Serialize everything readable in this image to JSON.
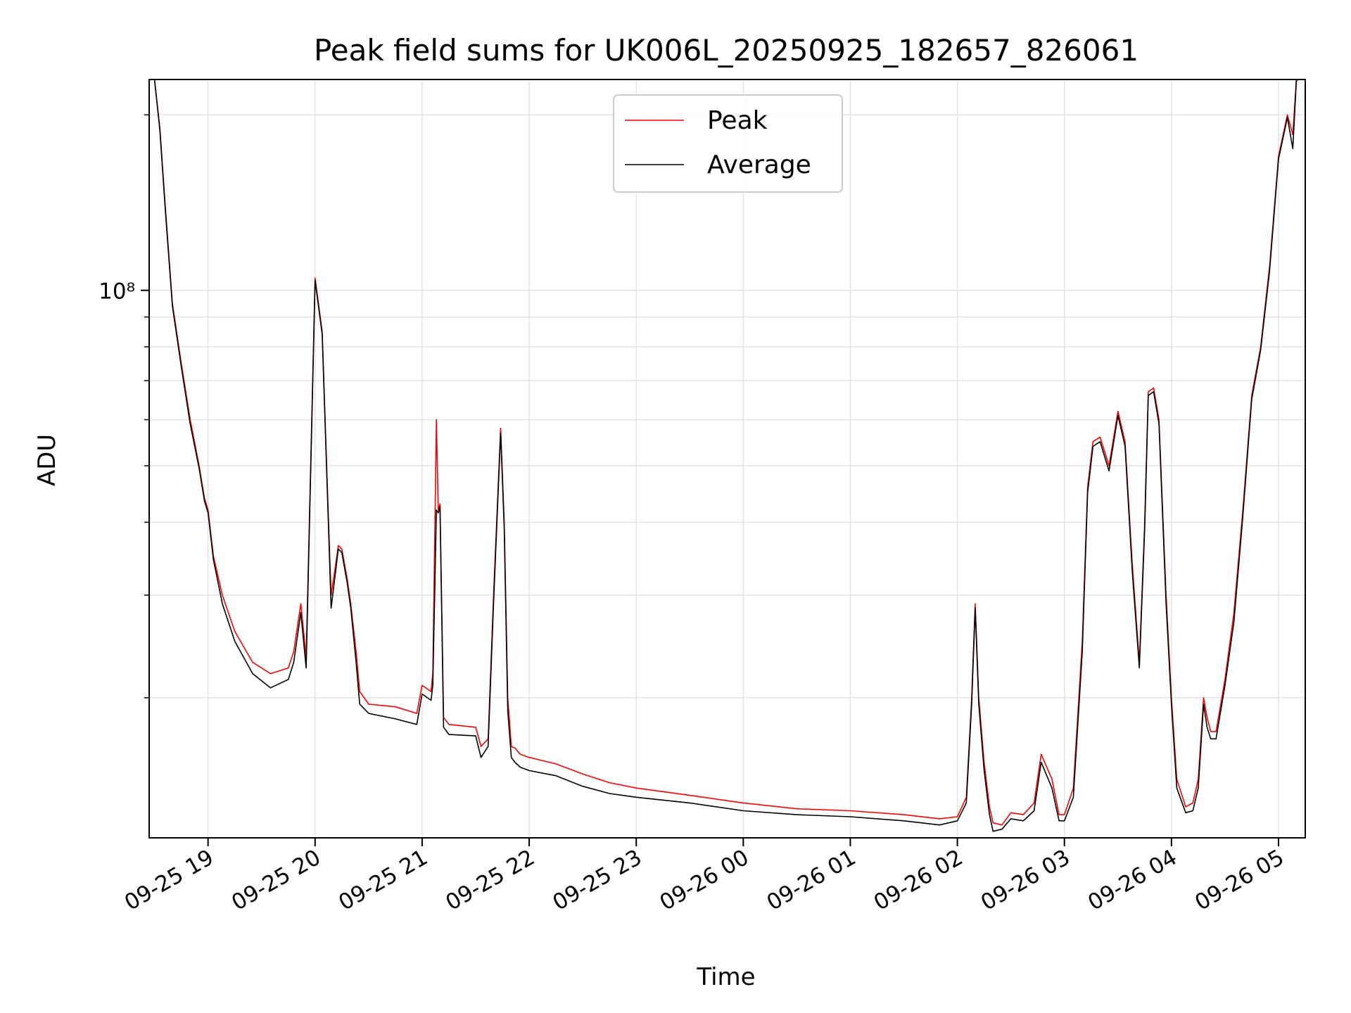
{
  "chart_data": {
    "type": "line",
    "title": "Peak field sums for UK006L_20250925_182657_826061",
    "xlabel": "Time",
    "ylabel": "ADU",
    "x_type": "datetime",
    "xlim": [
      "2025-09-25 18:27",
      "2025-09-26 05:15"
    ],
    "ylim": [
      11500000,
      230000000
    ],
    "y_scale": "log",
    "grid": true,
    "legend": "upper center",
    "x_ticks": [
      {
        "t": "2025-09-25 19:00",
        "label": "09-25 19"
      },
      {
        "t": "2025-09-25 20:00",
        "label": "09-25 20"
      },
      {
        "t": "2025-09-25 21:00",
        "label": "09-25 21"
      },
      {
        "t": "2025-09-25 22:00",
        "label": "09-25 22"
      },
      {
        "t": "2025-09-25 23:00",
        "label": "09-25 23"
      },
      {
        "t": "2025-09-26 00:00",
        "label": "09-26 00"
      },
      {
        "t": "2025-09-26 01:00",
        "label": "09-26 01"
      },
      {
        "t": "2025-09-26 02:00",
        "label": "09-26 02"
      },
      {
        "t": "2025-09-26 03:00",
        "label": "09-26 03"
      },
      {
        "t": "2025-09-26 04:00",
        "label": "09-26 04"
      },
      {
        "t": "2025-09-26 05:00",
        "label": "09-26 05"
      }
    ],
    "y_major_ticks": [
      {
        "value": 100000000,
        "label": "10⁸"
      }
    ],
    "y_minor_ticks": [
      20000000,
      30000000,
      40000000,
      50000000,
      60000000,
      70000000,
      80000000,
      90000000,
      200000000
    ],
    "series": [
      {
        "name": "Peak",
        "color": "#ff0000",
        "x": [
          "2025-09-25 18:30",
          "2025-09-25 18:33",
          "2025-09-25 18:36",
          "2025-09-25 18:40",
          "2025-09-25 18:45",
          "2025-09-25 18:50",
          "2025-09-25 18:55",
          "2025-09-25 18:58",
          "2025-09-25 19:00",
          "2025-09-25 19:03",
          "2025-09-25 19:08",
          "2025-09-25 19:15",
          "2025-09-25 19:25",
          "2025-09-25 19:35",
          "2025-09-25 19:45",
          "2025-09-25 19:48",
          "2025-09-25 19:52",
          "2025-09-25 19:55",
          "2025-09-25 20:00",
          "2025-09-25 20:04",
          "2025-09-25 20:07",
          "2025-09-25 20:09",
          "2025-09-25 20:11",
          "2025-09-25 20:13",
          "2025-09-25 20:15",
          "2025-09-25 20:18",
          "2025-09-25 20:20",
          "2025-09-25 20:23",
          "2025-09-25 20:25",
          "2025-09-25 20:30",
          "2025-09-25 20:45",
          "2025-09-25 20:57",
          "2025-09-25 21:00",
          "2025-09-25 21:05",
          "2025-09-25 21:06",
          "2025-09-25 21:08",
          "2025-09-25 21:09",
          "2025-09-25 21:10",
          "2025-09-25 21:12",
          "2025-09-25 21:15",
          "2025-09-25 21:30",
          "2025-09-25 21:33",
          "2025-09-25 21:37",
          "2025-09-25 21:40",
          "2025-09-25 21:44",
          "2025-09-25 21:46",
          "2025-09-25 21:48",
          "2025-09-25 21:50",
          "2025-09-25 21:52",
          "2025-09-25 21:55",
          "2025-09-25 22:00",
          "2025-09-25 22:15",
          "2025-09-25 22:30",
          "2025-09-25 22:45",
          "2025-09-25 23:00",
          "2025-09-25 23:30",
          "2025-09-26 00:00",
          "2025-09-26 00:30",
          "2025-09-26 01:00",
          "2025-09-26 01:30",
          "2025-09-26 01:50",
          "2025-09-26 02:00",
          "2025-09-26 02:05",
          "2025-09-26 02:08",
          "2025-09-26 02:10",
          "2025-09-26 02:12",
          "2025-09-26 02:15",
          "2025-09-26 02:18",
          "2025-09-26 02:20",
          "2025-09-26 02:25",
          "2025-09-26 02:30",
          "2025-09-26 02:37",
          "2025-09-26 02:43",
          "2025-09-26 02:47",
          "2025-09-26 02:53",
          "2025-09-26 02:57",
          "2025-09-26 03:00",
          "2025-09-26 03:05",
          "2025-09-26 03:10",
          "2025-09-26 03:13",
          "2025-09-26 03:16",
          "2025-09-26 03:20",
          "2025-09-26 03:25",
          "2025-09-26 03:30",
          "2025-09-26 03:34",
          "2025-09-26 03:38",
          "2025-09-26 03:42",
          "2025-09-26 03:45",
          "2025-09-26 03:47",
          "2025-09-26 03:50",
          "2025-09-26 03:53",
          "2025-09-26 03:57",
          "2025-09-26 04:00",
          "2025-09-26 04:03",
          "2025-09-26 04:08",
          "2025-09-26 04:12",
          "2025-09-26 04:15",
          "2025-09-26 04:18",
          "2025-09-26 04:20",
          "2025-09-26 04:22",
          "2025-09-26 04:25",
          "2025-09-26 04:30",
          "2025-09-26 04:35",
          "2025-09-26 04:40",
          "2025-09-26 04:45",
          "2025-09-26 04:50",
          "2025-09-26 04:55",
          "2025-09-26 05:00",
          "2025-09-26 05:05",
          "2025-09-26 05:08",
          "2025-09-26 05:10",
          "2025-09-26 05:12"
        ],
        "y": [
          230000000,
          190000000,
          140000000,
          95000000,
          75000000,
          60000000,
          50000000,
          44000000,
          42000000,
          35000000,
          30000000,
          26000000,
          23000000,
          22000000,
          22500000,
          24000000,
          29000000,
          23500000,
          105000000,
          85000000,
          45000000,
          30000000,
          33000000,
          36500000,
          36000000,
          32000000,
          29000000,
          24000000,
          20500000,
          19500000,
          19300000,
          18800000,
          21000000,
          20500000,
          22000000,
          60000000,
          42000000,
          43000000,
          18500000,
          18000000,
          17800000,
          16500000,
          17000000,
          30000000,
          58000000,
          40000000,
          20000000,
          16500000,
          16400000,
          16000000,
          15800000,
          15400000,
          14800000,
          14300000,
          14000000,
          13600000,
          13200000,
          12900000,
          12800000,
          12600000,
          12400000,
          12500000,
          13500000,
          20000000,
          29000000,
          20000000,
          15500000,
          13000000,
          12200000,
          12100000,
          12700000,
          12600000,
          13200000,
          16000000,
          14500000,
          12600000,
          12600000,
          14000000,
          25000000,
          46000000,
          55000000,
          56000000,
          50000000,
          62000000,
          55000000,
          34000000,
          23000000,
          40000000,
          67000000,
          68000000,
          60000000,
          30000000,
          20000000,
          14500000,
          13000000,
          13200000,
          14500000,
          20000000,
          18500000,
          17500000,
          17500000,
          21500000,
          28000000,
          42000000,
          66000000,
          80000000,
          110000000,
          170000000,
          200000000,
          185000000,
          230000000,
          235000000
        ]
      },
      {
        "name": "Average",
        "color": "#000000",
        "x": [
          "2025-09-25 18:30",
          "2025-09-25 18:33",
          "2025-09-25 18:36",
          "2025-09-25 18:40",
          "2025-09-25 18:45",
          "2025-09-25 18:50",
          "2025-09-25 18:55",
          "2025-09-25 18:58",
          "2025-09-25 19:00",
          "2025-09-25 19:03",
          "2025-09-25 19:08",
          "2025-09-25 19:15",
          "2025-09-25 19:25",
          "2025-09-25 19:35",
          "2025-09-25 19:45",
          "2025-09-25 19:48",
          "2025-09-25 19:52",
          "2025-09-25 19:55",
          "2025-09-25 20:00",
          "2025-09-25 20:04",
          "2025-09-25 20:07",
          "2025-09-25 20:09",
          "2025-09-25 20:11",
          "2025-09-25 20:13",
          "2025-09-25 20:15",
          "2025-09-25 20:18",
          "2025-09-25 20:20",
          "2025-09-25 20:23",
          "2025-09-25 20:25",
          "2025-09-25 20:30",
          "2025-09-25 20:45",
          "2025-09-25 20:57",
          "2025-09-25 21:00",
          "2025-09-25 21:05",
          "2025-09-25 21:06",
          "2025-09-25 21:08",
          "2025-09-25 21:09",
          "2025-09-25 21:10",
          "2025-09-25 21:12",
          "2025-09-25 21:15",
          "2025-09-25 21:30",
          "2025-09-25 21:33",
          "2025-09-25 21:37",
          "2025-09-25 21:40",
          "2025-09-25 21:44",
          "2025-09-25 21:46",
          "2025-09-25 21:48",
          "2025-09-25 21:50",
          "2025-09-25 21:52",
          "2025-09-25 21:55",
          "2025-09-25 22:00",
          "2025-09-25 22:15",
          "2025-09-25 22:30",
          "2025-09-25 22:45",
          "2025-09-25 23:00",
          "2025-09-25 23:30",
          "2025-09-26 00:00",
          "2025-09-26 00:30",
          "2025-09-26 01:00",
          "2025-09-26 01:30",
          "2025-09-26 01:50",
          "2025-09-26 02:00",
          "2025-09-26 02:05",
          "2025-09-26 02:08",
          "2025-09-26 02:10",
          "2025-09-26 02:12",
          "2025-09-26 02:15",
          "2025-09-26 02:18",
          "2025-09-26 02:20",
          "2025-09-26 02:25",
          "2025-09-26 02:30",
          "2025-09-26 02:37",
          "2025-09-26 02:43",
          "2025-09-26 02:47",
          "2025-09-26 02:53",
          "2025-09-26 02:57",
          "2025-09-26 03:00",
          "2025-09-26 03:05",
          "2025-09-26 03:10",
          "2025-09-26 03:13",
          "2025-09-26 03:16",
          "2025-09-26 03:20",
          "2025-09-26 03:25",
          "2025-09-26 03:30",
          "2025-09-26 03:34",
          "2025-09-26 03:38",
          "2025-09-26 03:42",
          "2025-09-26 03:45",
          "2025-09-26 03:47",
          "2025-09-26 03:50",
          "2025-09-26 03:53",
          "2025-09-26 03:57",
          "2025-09-26 04:00",
          "2025-09-26 04:03",
          "2025-09-26 04:08",
          "2025-09-26 04:12",
          "2025-09-26 04:15",
          "2025-09-26 04:18",
          "2025-09-26 04:20",
          "2025-09-26 04:22",
          "2025-09-26 04:25",
          "2025-09-26 04:30",
          "2025-09-26 04:35",
          "2025-09-26 04:40",
          "2025-09-26 04:45",
          "2025-09-26 04:50",
          "2025-09-26 04:55",
          "2025-09-26 05:00",
          "2025-09-26 05:05",
          "2025-09-26 05:08",
          "2025-09-26 05:10",
          "2025-09-26 05:12"
        ],
        "y": [
          230000000,
          188000000,
          138000000,
          94000000,
          74000000,
          59000000,
          49500000,
          43500000,
          41500000,
          34500000,
          29000000,
          25000000,
          22000000,
          20800000,
          21500000,
          23000000,
          28000000,
          22500000,
          104000000,
          84000000,
          44000000,
          28500000,
          32000000,
          36000000,
          35500000,
          31500000,
          28500000,
          23000000,
          19500000,
          18800000,
          18400000,
          18000000,
          20300000,
          19800000,
          21000000,
          42000000,
          41500000,
          42500000,
          17800000,
          17300000,
          17200000,
          15800000,
          16500000,
          29000000,
          57000000,
          39000000,
          19000000,
          15800000,
          15500000,
          15200000,
          15000000,
          14700000,
          14100000,
          13700000,
          13500000,
          13200000,
          12800000,
          12600000,
          12500000,
          12300000,
          12100000,
          12300000,
          13200000,
          19500000,
          28500000,
          19500000,
          15000000,
          12600000,
          11800000,
          11900000,
          12400000,
          12300000,
          12800000,
          15500000,
          14000000,
          12300000,
          12300000,
          13500000,
          24000000,
          45000000,
          54000000,
          55000000,
          49000000,
          61000000,
          54000000,
          33000000,
          22500000,
          39000000,
          66000000,
          67000000,
          59000000,
          29000000,
          19500000,
          14000000,
          12700000,
          12800000,
          14000000,
          19500000,
          17800000,
          17000000,
          17000000,
          21000000,
          27000000,
          41000000,
          65000000,
          79000000,
          108000000,
          168000000,
          198000000,
          175000000,
          228000000,
          235000000
        ]
      }
    ]
  }
}
